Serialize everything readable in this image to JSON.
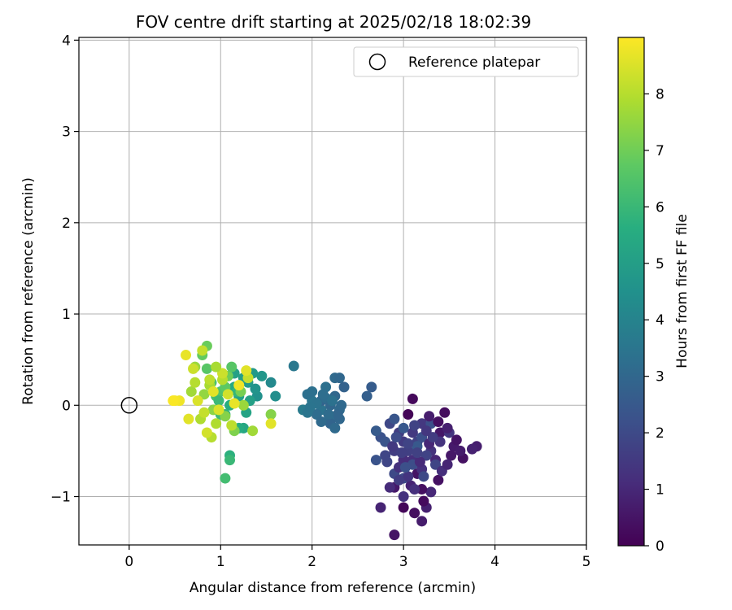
{
  "chart_data": {
    "type": "scatter",
    "title": "FOV centre drift starting at 2025/02/18 18:02:39",
    "xlabel": "Angular distance from reference (arcmin)",
    "ylabel": "Rotation from reference (arcmin)",
    "xlim": [
      -0.55,
      5.0
    ],
    "ylim": [
      -1.53,
      4.03
    ],
    "xticks": [
      "0",
      "1",
      "2",
      "3",
      "4",
      "5"
    ],
    "yticks": [
      "−1",
      "0",
      "1",
      "2",
      "3",
      "4"
    ],
    "grid": true,
    "legend": {
      "placement": "top-right",
      "entries": [
        "Reference platepar"
      ]
    },
    "reference_point": {
      "x": 0,
      "y": 0
    },
    "colorbar": {
      "label": "Hours from first FF file",
      "range": [
        0,
        9
      ],
      "ticks": [
        "0",
        "1",
        "2",
        "3",
        "4",
        "5",
        "6",
        "7",
        "8"
      ],
      "colormap": "viridis"
    },
    "points": [
      [
        3.05,
        -0.1,
        0.1
      ],
      [
        3.1,
        0.07,
        0.2
      ],
      [
        3.45,
        -0.08,
        0.3
      ],
      [
        3.65,
        -0.58,
        0.4
      ],
      [
        2.9,
        -1.42,
        0.5
      ],
      [
        2.9,
        -0.9,
        0.6
      ],
      [
        3.2,
        -1.27,
        0.7
      ],
      [
        3.25,
        -1.12,
        0.8
      ],
      [
        2.75,
        -1.12,
        0.9
      ],
      [
        3.3,
        -0.95,
        1.0
      ],
      [
        3.0,
        -1.12,
        0.15
      ],
      [
        3.2,
        -0.92,
        0.35
      ],
      [
        3.15,
        -0.75,
        0.45
      ],
      [
        3.4,
        -0.3,
        0.55
      ],
      [
        3.55,
        -0.45,
        0.65
      ],
      [
        3.8,
        -0.45,
        0.75
      ],
      [
        3.75,
        -0.48,
        0.85
      ],
      [
        3.35,
        -0.6,
        0.95
      ],
      [
        3.0,
        -0.6,
        1.05
      ],
      [
        2.85,
        -0.9,
        1.1
      ],
      [
        3.0,
        -0.6,
        1.15
      ],
      [
        3.1,
        -0.6,
        1.2
      ],
      [
        3.2,
        -0.7,
        1.25
      ],
      [
        3.3,
        -0.5,
        1.3
      ],
      [
        3.4,
        -0.4,
        1.35
      ],
      [
        3.5,
        -0.3,
        1.4
      ],
      [
        3.2,
        -0.2,
        1.45
      ],
      [
        3.1,
        -0.3,
        1.5
      ],
      [
        3.0,
        -0.4,
        1.55
      ],
      [
        2.9,
        -0.5,
        1.6
      ],
      [
        2.95,
        -0.3,
        1.65
      ],
      [
        3.05,
        -0.5,
        1.7
      ],
      [
        3.15,
        -0.4,
        1.75
      ],
      [
        3.25,
        -0.55,
        1.8
      ],
      [
        3.35,
        -0.65,
        1.85
      ],
      [
        2.8,
        -0.55,
        1.9
      ],
      [
        2.85,
        -0.2,
        1.95
      ],
      [
        2.9,
        -0.75,
        2.0
      ],
      [
        3.0,
        -0.8,
        2.05
      ],
      [
        3.1,
        -0.65,
        2.1
      ],
      [
        3.2,
        -0.35,
        2.15
      ],
      [
        3.3,
        -0.2,
        2.2
      ],
      [
        2.75,
        -0.35,
        2.25
      ],
      [
        2.7,
        -0.6,
        2.3
      ],
      [
        2.8,
        -0.4,
        2.35
      ],
      [
        2.9,
        -0.15,
        2.4
      ],
      [
        3.0,
        -0.25,
        2.45
      ],
      [
        3.15,
        -0.45,
        2.5
      ],
      [
        2.7,
        -0.28,
        2.55
      ],
      [
        2.65,
        0.2,
        2.6
      ],
      [
        3.22,
        -1.05,
        0.25
      ],
      [
        3.12,
        -1.18,
        0.32
      ],
      [
        3.38,
        -0.82,
        0.42
      ],
      [
        3.52,
        -0.55,
        0.58
      ],
      [
        3.62,
        -0.5,
        0.68
      ],
      [
        3.48,
        -0.25,
        0.78
      ],
      [
        3.08,
        -0.88,
        0.88
      ],
      [
        3.28,
        -0.42,
        0.98
      ],
      [
        3.18,
        -0.62,
        1.08
      ],
      [
        3.42,
        -0.72,
        1.18
      ],
      [
        2.95,
        -0.68,
        1.28
      ],
      [
        3.05,
        -0.78,
        1.38
      ],
      [
        2.88,
        -0.45,
        1.48
      ],
      [
        3.32,
        -0.35,
        1.58
      ],
      [
        2.98,
        -0.52,
        1.68
      ],
      [
        3.12,
        -0.22,
        1.78
      ],
      [
        2.82,
        -0.62,
        1.88
      ],
      [
        3.22,
        -0.78,
        1.98
      ],
      [
        2.92,
        -0.35,
        2.08
      ],
      [
        3.02,
        -0.68,
        2.18
      ],
      [
        3.38,
        -0.18,
        0.38
      ],
      [
        3.58,
        -0.38,
        0.48
      ],
      [
        3.28,
        -0.12,
        0.72
      ],
      [
        3.48,
        -0.65,
        0.92
      ],
      [
        3.12,
        -0.92,
        1.22
      ],
      [
        3.0,
        -1.0,
        1.32
      ],
      [
        3.25,
        -0.28,
        1.42
      ],
      [
        2.95,
        -0.82,
        1.62
      ],
      [
        3.15,
        -0.52,
        1.72
      ],
      [
        3.05,
        -0.42,
        1.82
      ],
      [
        1.8,
        0.43,
        3.6
      ],
      [
        2.15,
        0.2,
        3.3
      ],
      [
        2.25,
        0.1,
        3.0
      ],
      [
        2.3,
        -0.05,
        3.1
      ],
      [
        2.2,
        -0.15,
        3.2
      ],
      [
        2.1,
        -0.05,
        3.4
      ],
      [
        2.0,
        0.05,
        3.5
      ],
      [
        1.95,
        0.12,
        3.3
      ],
      [
        2.05,
        -0.1,
        3.2
      ],
      [
        2.25,
        0.3,
        3.1
      ],
      [
        2.3,
        0.3,
        3.0
      ],
      [
        2.1,
        0.05,
        2.9
      ],
      [
        2.35,
        0.2,
        2.8
      ],
      [
        2.2,
        -0.2,
        2.9
      ],
      [
        2.3,
        -0.15,
        3.0
      ],
      [
        2.25,
        -0.25,
        3.1
      ],
      [
        1.9,
        -0.05,
        3.7
      ],
      [
        1.95,
        -0.08,
        3.5
      ],
      [
        2.0,
        0.15,
        3.3
      ],
      [
        2.15,
        0.08,
        3.2
      ],
      [
        2.1,
        -0.18,
        3.1
      ],
      [
        2.2,
        0.0,
        3.0
      ],
      [
        2.05,
        0.02,
        3.4
      ],
      [
        2.28,
        -0.1,
        2.95
      ],
      [
        2.6,
        0.1,
        2.7
      ],
      [
        2.18,
        -0.1,
        3.15
      ],
      [
        2.12,
        0.12,
        3.25
      ],
      [
        2.22,
        0.05,
        3.35
      ],
      [
        1.98,
        -0.02,
        3.45
      ],
      [
        2.32,
        0.0,
        3.05
      ],
      [
        1.55,
        0.25,
        4.2
      ],
      [
        1.6,
        0.1,
        4.4
      ],
      [
        1.4,
        0.1,
        4.5
      ],
      [
        1.35,
        0.35,
        4.8
      ],
      [
        1.3,
        0.25,
        4.9
      ],
      [
        1.25,
        0.3,
        5.0
      ],
      [
        1.2,
        0.1,
        5.2
      ],
      [
        1.15,
        0.2,
        5.4
      ],
      [
        1.1,
        0.0,
        5.6
      ],
      [
        1.05,
        -0.1,
        5.8
      ],
      [
        1.25,
        -0.25,
        5.3
      ],
      [
        1.2,
        -0.25,
        5.5
      ],
      [
        1.1,
        -0.55,
        5.7
      ],
      [
        1.1,
        -0.6,
        6.0
      ],
      [
        1.05,
        -0.8,
        6.2
      ],
      [
        1.0,
        -0.1,
        6.1
      ],
      [
        0.95,
        0.1,
        6.3
      ],
      [
        0.9,
        0.25,
        6.4
      ],
      [
        0.85,
        0.4,
        6.6
      ],
      [
        0.8,
        0.55,
        6.8
      ],
      [
        0.85,
        0.65,
        6.9
      ],
      [
        1.0,
        0.15,
        6.5
      ],
      [
        1.05,
        0.2,
        6.7
      ],
      [
        1.15,
        0.35,
        5.1
      ],
      [
        1.28,
        -0.08,
        5.2
      ],
      [
        1.38,
        0.18,
        4.6
      ],
      [
        1.45,
        0.32,
        4.7
      ],
      [
        1.32,
        0.05,
        5.05
      ],
      [
        1.18,
        0.15,
        5.9
      ],
      [
        0.98,
        0.05,
        6.05
      ],
      [
        1.08,
        0.32,
        7.0
      ],
      [
        1.12,
        0.42,
        6.6
      ],
      [
        1.22,
        0.15,
        7.1
      ],
      [
        1.15,
        -0.28,
        7.2
      ],
      [
        1.05,
        -0.12,
        7.3
      ],
      [
        0.92,
        -0.05,
        7.4
      ],
      [
        0.82,
        0.12,
        7.5
      ],
      [
        0.72,
        0.42,
        7.6
      ],
      [
        0.68,
        0.15,
        7.7
      ],
      [
        0.88,
        0.22,
        7.8
      ],
      [
        0.95,
        -0.2,
        7.9
      ],
      [
        1.02,
        0.28,
        8.0
      ],
      [
        1.12,
        -0.22,
        8.1
      ],
      [
        1.3,
        0.3,
        8.2
      ],
      [
        1.35,
        -0.28,
        7.7
      ],
      [
        1.25,
        0.0,
        7.6
      ],
      [
        1.55,
        -0.1,
        7.3
      ],
      [
        1.55,
        -0.2,
        8.6
      ],
      [
        0.9,
        -0.35,
        8.0
      ],
      [
        0.85,
        -0.3,
        8.4
      ],
      [
        0.75,
        0.05,
        8.5
      ],
      [
        0.65,
        -0.15,
        8.6
      ],
      [
        0.62,
        0.55,
        8.7
      ],
      [
        0.55,
        0.05,
        8.8
      ],
      [
        0.5,
        0.05,
        8.9
      ],
      [
        0.48,
        0.05,
        8.95
      ],
      [
        0.7,
        0.4,
        8.3
      ],
      [
        0.8,
        0.6,
        8.2
      ],
      [
        0.88,
        0.28,
        8.1
      ],
      [
        1.02,
        0.35,
        8.3
      ],
      [
        1.08,
        0.12,
        8.4
      ],
      [
        0.98,
        -0.05,
        8.5
      ],
      [
        0.92,
        0.15,
        8.6
      ],
      [
        1.15,
        0.02,
        8.7
      ],
      [
        1.2,
        0.22,
        8.8
      ],
      [
        0.78,
        -0.15,
        7.9
      ],
      [
        0.72,
        0.25,
        8.0
      ],
      [
        0.82,
        -0.08,
        8.2
      ],
      [
        0.95,
        0.42,
        7.8
      ],
      [
        1.28,
        0.38,
        8.6
      ]
    ]
  }
}
